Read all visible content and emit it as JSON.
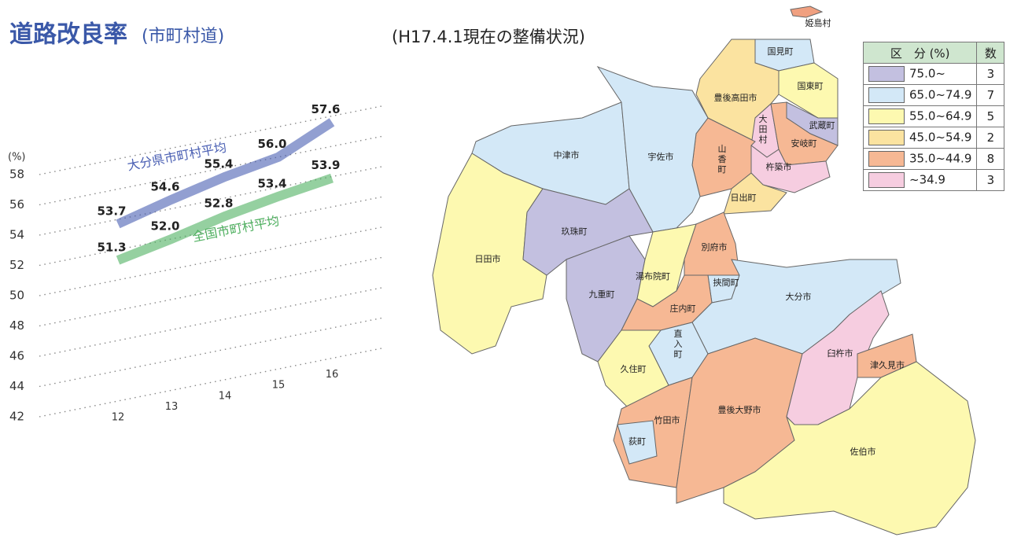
{
  "title": "道路改良率",
  "title_sub": "(市町村道)",
  "map_title": "(H17.4.1現在の整備状況)",
  "chart_data": {
    "type": "line",
    "y_unit": "(%)",
    "categories": [
      "12",
      "13",
      "14",
      "15",
      "16"
    ],
    "series": [
      {
        "name": "大分県市町村平均",
        "color": "#4a5fb3",
        "values": [
          53.7,
          54.6,
          55.4,
          56.0,
          57.6
        ],
        "value_labels": [
          "53.7",
          "54.6",
          "55.4",
          "56.0",
          "57.6"
        ]
      },
      {
        "name": "全国市町村平均",
        "color": "#4fb060",
        "values": [
          51.3,
          52.0,
          52.8,
          53.4,
          53.9
        ],
        "value_labels": [
          "51.3",
          "52.0",
          "52.8",
          "53.4",
          "53.9"
        ]
      }
    ],
    "ylim": [
      42,
      58
    ],
    "yticks": [
      42,
      44,
      46,
      48,
      50,
      52,
      54,
      56,
      58
    ],
    "grid": true
  },
  "legend": {
    "header": [
      "区　分 (%)",
      "数"
    ],
    "rows": [
      {
        "range": "75.0~",
        "count": "3",
        "color": "#c3c0e0"
      },
      {
        "range": "65.0~74.9",
        "count": "7",
        "color": "#d3e8f7"
      },
      {
        "range": "55.0~64.9",
        "count": "5",
        "color": "#fdf9b0"
      },
      {
        "range": "45.0~54.9",
        "count": "2",
        "color": "#fbe3a0"
      },
      {
        "range": "35.0~44.9",
        "count": "8",
        "color": "#f6b894"
      },
      {
        "range": "~34.9",
        "count": "3",
        "color": "#f6cde0"
      }
    ]
  },
  "map": {
    "regions": [
      {
        "name": "姫島村",
        "color": "#f0a080"
      },
      {
        "name": "国見町",
        "color": "#d3e8f7"
      },
      {
        "name": "国東町",
        "color": "#fdf9b0"
      },
      {
        "name": "豊後高田市",
        "color": "#fbe3a0"
      },
      {
        "name": "大田村",
        "color": "#f6cde0"
      },
      {
        "name": "武蔵町",
        "color": "#c3c0e0"
      },
      {
        "name": "安岐町",
        "color": "#f6b894"
      },
      {
        "name": "杵築市",
        "color": "#f6cde0"
      },
      {
        "name": "山香町",
        "color": "#f6b894"
      },
      {
        "name": "日出町",
        "color": "#fbe3a0"
      },
      {
        "name": "中津市",
        "color": "#d3e8f7"
      },
      {
        "name": "宇佐市",
        "color": "#d3e8f7"
      },
      {
        "name": "日田市",
        "color": "#fdf9b0"
      },
      {
        "name": "玖珠町",
        "color": "#c3c0e0"
      },
      {
        "name": "九重町",
        "color": "#c3c0e0"
      },
      {
        "name": "湯布院町",
        "color": "#fdf9b0"
      },
      {
        "name": "別府市",
        "color": "#f6b894"
      },
      {
        "name": "挾間町",
        "color": "#d3e8f7"
      },
      {
        "name": "庄内町",
        "color": "#f6b894"
      },
      {
        "name": "大分市",
        "color": "#d3e8f7"
      },
      {
        "name": "直入町",
        "color": "#d3e8f7"
      },
      {
        "name": "久住町",
        "color": "#fdf9b0"
      },
      {
        "name": "竹田市",
        "color": "#f6b894"
      },
      {
        "name": "荻町",
        "color": "#d3e8f7"
      },
      {
        "name": "豊後大野市",
        "color": "#f6b894"
      },
      {
        "name": "臼杵市",
        "color": "#f6cde0"
      },
      {
        "name": "津久見市",
        "color": "#f6b894"
      },
      {
        "name": "佐伯市",
        "color": "#fdf9b0"
      }
    ]
  }
}
